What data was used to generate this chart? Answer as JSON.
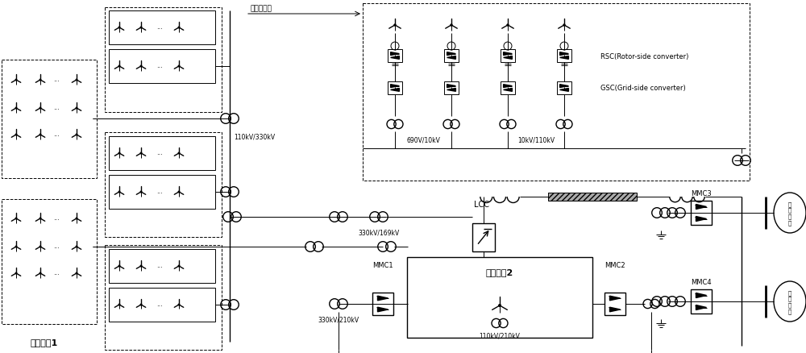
{
  "bg_color": "#ffffff",
  "line_color": "#000000",
  "labels": {
    "wind_farm1": "风电基地1",
    "wind_farm2": "风电基地2",
    "wind_turbine_group": "风电机组群",
    "v110_330": "110kV/330kV",
    "v330_169": "330kV/169kV",
    "v330_210": "330kV/210kV",
    "v110_210": "110kV/210kV",
    "v690_10": "690V/10kV",
    "v10_110": "10kV/110kV",
    "lcc": "LCC",
    "mmc1": "MMC1",
    "mmc2": "MMC2",
    "mmc3": "MMC3",
    "mmc4": "MMC4",
    "rsc": "RSC(Rotor-side converter)",
    "gsc": "GSC(Grid-side converter)",
    "ac_system1": "交\n流\n系\n统",
    "ac_system2": "交\n流\n系\n统"
  }
}
